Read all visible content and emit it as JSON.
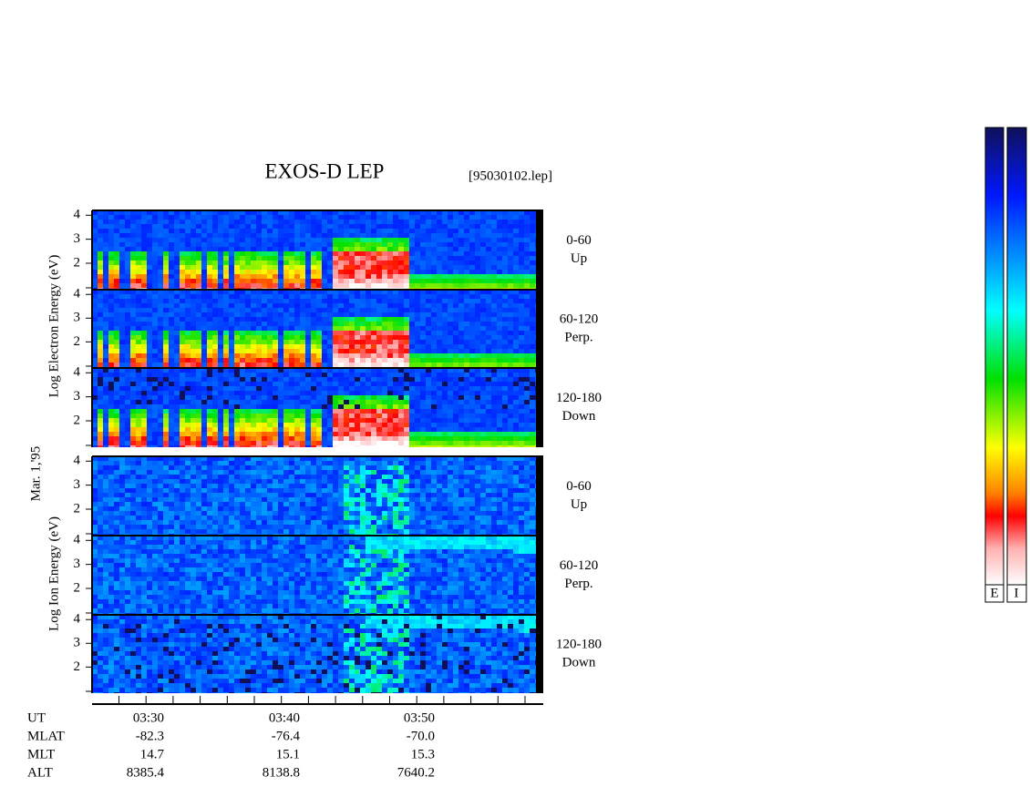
{
  "title": "EXOS-D LEP",
  "file": "[95030102.lep]",
  "date": "Mar. 1,'95",
  "groups": [
    {
      "label": "Log  Electron  Energy  (eV)",
      "panels": [
        {
          "angle": "0-60",
          "direction": "Up"
        },
        {
          "angle": "60-120",
          "direction": "Perp."
        },
        {
          "angle": "120-180",
          "direction": "Down"
        }
      ]
    },
    {
      "label": "Log  Ion  Energy  (eV)",
      "panels": [
        {
          "angle": "0-60",
          "direction": "Up"
        },
        {
          "angle": "60-120",
          "direction": "Perp."
        },
        {
          "angle": "120-180",
          "direction": "Down"
        }
      ]
    }
  ],
  "ylim": [
    0.9,
    4.2
  ],
  "yticks": [
    2,
    3,
    4
  ],
  "footer": [
    [
      "UT",
      "03:30",
      "03:40",
      "03:50"
    ],
    [
      "MLAT",
      "-82.3",
      "-76.4",
      "-70.0"
    ],
    [
      "MLT",
      "14.7",
      "15.1",
      "15.3"
    ],
    [
      "ALT",
      "8385.4",
      "8138.8",
      "7640.2"
    ]
  ],
  "colorbars": [
    "E",
    "I"
  ]
}
